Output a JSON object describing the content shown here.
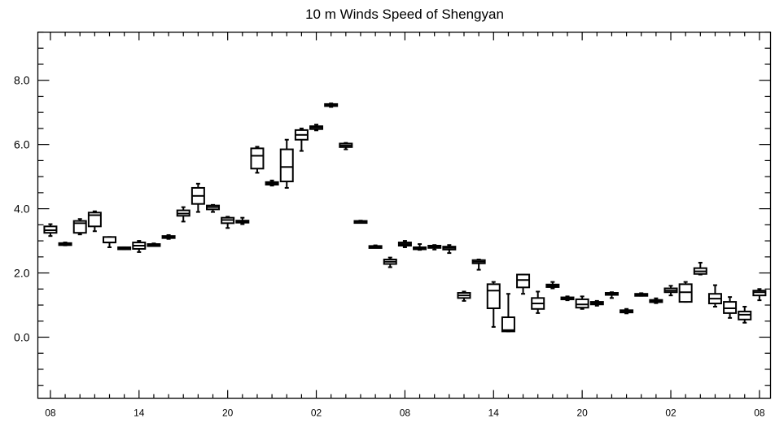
{
  "chart_data": {
    "type": "boxplot",
    "title": "10 m Winds Speed of Shengyan",
    "xlabel": "",
    "ylabel": "",
    "ylim": [
      -1.9,
      9.5
    ],
    "yticks": [
      0.0,
      2.0,
      4.0,
      6.0,
      8.0
    ],
    "ytick_labels": [
      "0.0",
      "2.0",
      "4.0",
      "6.0",
      "8.0"
    ],
    "xticks": [
      1,
      7,
      13,
      19,
      25,
      31,
      37,
      43,
      49
    ],
    "xtick_labels": [
      "08",
      "14",
      "20",
      "02",
      "08",
      "14",
      "20",
      "02",
      "08"
    ],
    "x_range": [
      0.15,
      49.75
    ],
    "grid": false,
    "boxes": [
      {
        "x": 1,
        "min": 3.15,
        "q1": 3.25,
        "median": 3.33,
        "q3": 3.45,
        "max": 3.52
      },
      {
        "x": 2,
        "min": 2.86,
        "q1": 2.88,
        "median": 2.9,
        "q3": 2.93,
        "max": 2.95
      },
      {
        "x": 3,
        "min": 3.2,
        "q1": 3.25,
        "median": 3.55,
        "q3": 3.62,
        "max": 3.68
      },
      {
        "x": 4,
        "min": 3.3,
        "q1": 3.45,
        "median": 3.8,
        "q3": 3.88,
        "max": 3.92
      },
      {
        "x": 5,
        "min": 2.8,
        "q1": 2.95,
        "median": 2.95,
        "q3": 3.12,
        "max": 3.12
      },
      {
        "x": 6,
        "min": 2.74,
        "q1": 2.76,
        "median": 2.78,
        "q3": 2.8,
        "max": 2.8
      },
      {
        "x": 7,
        "min": 2.65,
        "q1": 2.75,
        "median": 2.85,
        "q3": 2.95,
        "max": 3.0
      },
      {
        "x": 8,
        "min": 2.84,
        "q1": 2.86,
        "median": 2.88,
        "q3": 2.9,
        "max": 2.92
      },
      {
        "x": 9,
        "min": 3.06,
        "q1": 3.09,
        "median": 3.12,
        "q3": 3.15,
        "max": 3.18
      },
      {
        "x": 10,
        "min": 3.6,
        "q1": 3.78,
        "median": 3.85,
        "q3": 3.95,
        "max": 4.05
      },
      {
        "x": 11,
        "min": 3.9,
        "q1": 4.15,
        "median": 4.4,
        "q3": 4.65,
        "max": 4.78
      },
      {
        "x": 12,
        "min": 3.9,
        "q1": 3.98,
        "median": 4.05,
        "q3": 4.1,
        "max": 4.12
      },
      {
        "x": 13,
        "min": 3.4,
        "q1": 3.55,
        "median": 3.65,
        "q3": 3.72,
        "max": 3.75
      },
      {
        "x": 14,
        "min": 3.52,
        "q1": 3.57,
        "median": 3.6,
        "q3": 3.63,
        "max": 3.72
      },
      {
        "x": 15,
        "min": 5.12,
        "q1": 5.25,
        "median": 5.65,
        "q3": 5.88,
        "max": 5.93
      },
      {
        "x": 16,
        "min": 4.72,
        "q1": 4.75,
        "median": 4.79,
        "q3": 4.83,
        "max": 4.88
      },
      {
        "x": 17,
        "min": 4.65,
        "q1": 4.85,
        "median": 5.3,
        "q3": 5.85,
        "max": 6.15
      },
      {
        "x": 18,
        "min": 5.8,
        "q1": 6.15,
        "median": 6.3,
        "q3": 6.45,
        "max": 6.5
      },
      {
        "x": 19,
        "min": 6.44,
        "q1": 6.48,
        "median": 6.53,
        "q3": 6.57,
        "max": 6.62
      },
      {
        "x": 20,
        "min": 7.17,
        "q1": 7.2,
        "median": 7.23,
        "q3": 7.26,
        "max": 7.28
      },
      {
        "x": 21,
        "min": 5.85,
        "q1": 5.92,
        "median": 5.97,
        "q3": 6.03,
        "max": 6.05
      },
      {
        "x": 22,
        "min": 3.58,
        "q1": 3.59,
        "median": 3.6,
        "q3": 3.62,
        "max": 3.63
      },
      {
        "x": 23,
        "min": 2.79,
        "q1": 2.8,
        "median": 2.82,
        "q3": 2.84,
        "max": 2.86
      },
      {
        "x": 24,
        "min": 2.18,
        "q1": 2.28,
        "median": 2.35,
        "q3": 2.42,
        "max": 2.48
      },
      {
        "x": 25,
        "min": 2.8,
        "q1": 2.85,
        "median": 2.9,
        "q3": 2.95,
        "max": 3.0
      },
      {
        "x": 26,
        "min": 2.72,
        "q1": 2.75,
        "median": 2.78,
        "q3": 2.8,
        "max": 2.9
      },
      {
        "x": 27,
        "min": 2.73,
        "q1": 2.78,
        "median": 2.82,
        "q3": 2.85,
        "max": 2.87
      },
      {
        "x": 28,
        "min": 2.62,
        "q1": 2.73,
        "median": 2.78,
        "q3": 2.82,
        "max": 2.87
      },
      {
        "x": 29,
        "min": 1.13,
        "q1": 1.22,
        "median": 1.3,
        "q3": 1.38,
        "max": 1.42
      },
      {
        "x": 30,
        "min": 2.1,
        "q1": 2.3,
        "median": 2.35,
        "q3": 2.4,
        "max": 2.42
      },
      {
        "x": 31,
        "min": 0.32,
        "q1": 0.9,
        "median": 1.45,
        "q3": 1.65,
        "max": 1.72
      },
      {
        "x": 32,
        "min": 0.18,
        "q1": 0.18,
        "median": 0.22,
        "q3": 0.62,
        "max": 1.35
      },
      {
        "x": 33,
        "min": 1.35,
        "q1": 1.55,
        "median": 1.78,
        "q3": 1.95,
        "max": 1.95
      },
      {
        "x": 34,
        "min": 0.75,
        "q1": 0.88,
        "median": 1.05,
        "q3": 1.22,
        "max": 1.42
      },
      {
        "x": 35,
        "min": 1.52,
        "q1": 1.56,
        "median": 1.6,
        "q3": 1.64,
        "max": 1.72
      },
      {
        "x": 36,
        "min": 1.15,
        "q1": 1.18,
        "median": 1.21,
        "q3": 1.24,
        "max": 1.27
      },
      {
        "x": 37,
        "min": 0.88,
        "q1": 0.92,
        "median": 1.02,
        "q3": 1.18,
        "max": 1.27
      },
      {
        "x": 38,
        "min": 0.98,
        "q1": 1.02,
        "median": 1.06,
        "q3": 1.1,
        "max": 1.13
      },
      {
        "x": 39,
        "min": 1.22,
        "q1": 1.33,
        "median": 1.36,
        "q3": 1.38,
        "max": 1.4
      },
      {
        "x": 40,
        "min": 0.74,
        "q1": 0.77,
        "median": 0.8,
        "q3": 0.84,
        "max": 0.88
      },
      {
        "x": 41,
        "min": 1.29,
        "q1": 1.31,
        "median": 1.33,
        "q3": 1.35,
        "max": 1.37
      },
      {
        "x": 42,
        "min": 1.06,
        "q1": 1.09,
        "median": 1.12,
        "q3": 1.16,
        "max": 1.21
      },
      {
        "x": 43,
        "min": 1.3,
        "q1": 1.4,
        "median": 1.45,
        "q3": 1.52,
        "max": 1.6
      },
      {
        "x": 44,
        "min": 1.1,
        "q1": 1.1,
        "median": 1.4,
        "q3": 1.65,
        "max": 1.72
      },
      {
        "x": 45,
        "min": 1.95,
        "q1": 1.97,
        "median": 2.05,
        "q3": 2.15,
        "max": 2.32
      },
      {
        "x": 46,
        "min": 0.95,
        "q1": 1.05,
        "median": 1.2,
        "q3": 1.35,
        "max": 1.62
      },
      {
        "x": 47,
        "min": 0.6,
        "q1": 0.75,
        "median": 0.9,
        "q3": 1.1,
        "max": 1.25
      },
      {
        "x": 48,
        "min": 0.45,
        "q1": 0.55,
        "median": 0.7,
        "q3": 0.8,
        "max": 0.95
      },
      {
        "x": 49,
        "min": 1.15,
        "q1": 1.3,
        "median": 1.4,
        "q3": 1.45,
        "max": 1.5
      }
    ]
  }
}
